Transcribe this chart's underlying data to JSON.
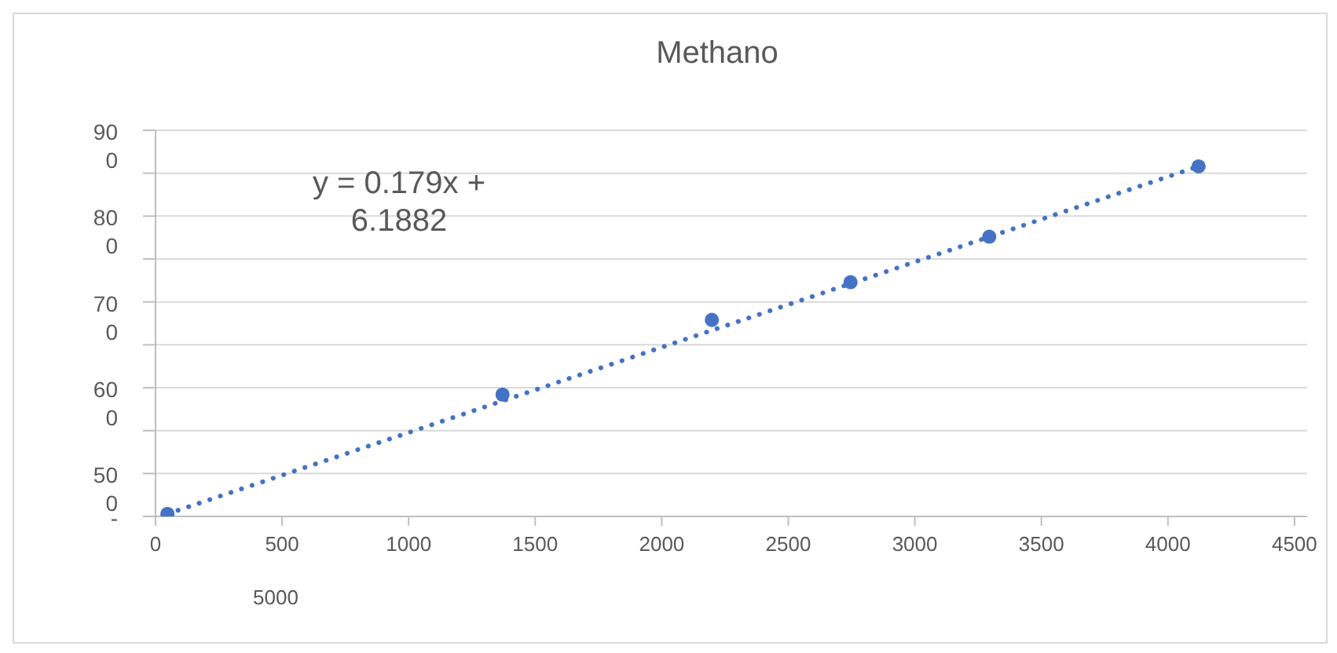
{
  "chart_data": {
    "type": "scatter",
    "title": "Methano",
    "series": [
      {
        "type": "scatter",
        "color": "#4472c4",
        "marker": "circle",
        "x": [
          47,
          1371,
          2198,
          2746,
          3294,
          4121
        ],
        "values": [
          453,
          592,
          679,
          723,
          776,
          858
        ]
      },
      {
        "type": "line",
        "color": "#4472c4",
        "line_style": "dotted",
        "marker": "none",
        "x": [
          47,
          4121
        ],
        "values": [
          453,
          858
        ]
      }
    ],
    "annotations": [
      "y = 0.179x +\n6.1882",
      "5000"
    ],
    "xlim": [
      0,
      4550
    ],
    "xticks": [
      0,
      500,
      1000,
      1500,
      2000,
      2500,
      3000,
      3500,
      4000,
      4500
    ],
    "ylim": [
      450,
      900
    ],
    "yticks": [
      {
        "value": 450,
        "label": "-"
      },
      500,
      {
        "value": 550,
        "label": null
      },
      600,
      {
        "value": 650,
        "label": null
      },
      700,
      {
        "value": 750,
        "label": null
      },
      800,
      {
        "value": 850,
        "label": null
      },
      900
    ],
    "grid": "y"
  }
}
